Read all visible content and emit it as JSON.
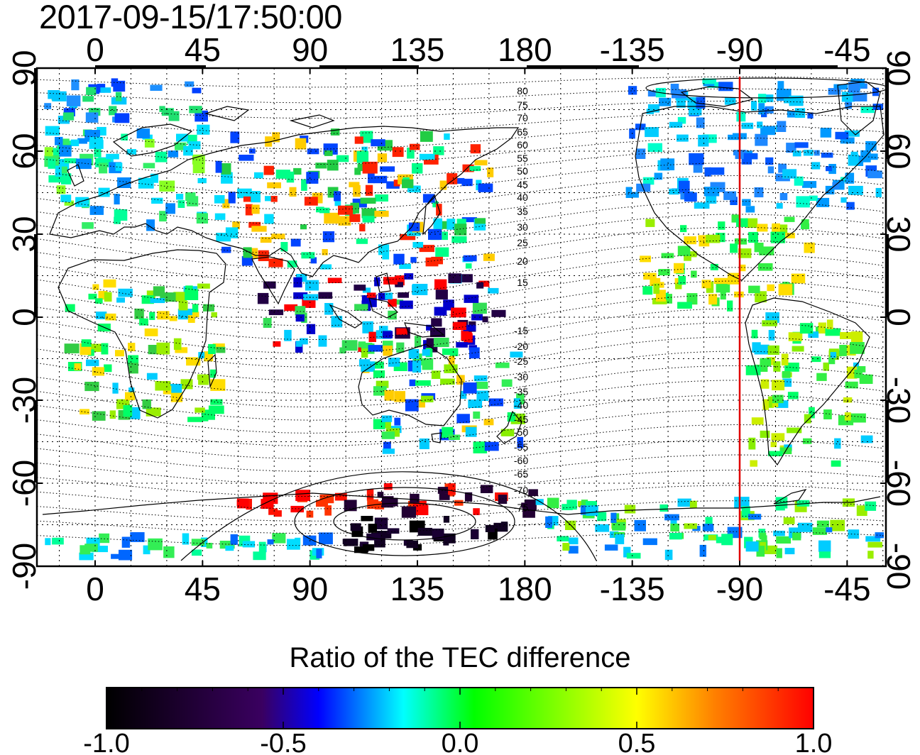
{
  "title": "2017-09-15/17:50:00",
  "map": {
    "lon_ticks": [
      "0",
      "45",
      "90",
      "135",
      "180",
      "-135",
      "-90",
      "-45"
    ],
    "lat_ticks": [
      "90",
      "60",
      "30",
      "0",
      "-30",
      "-60",
      "-90"
    ],
    "magnetic_lat_labels_north": [
      "80",
      "75",
      "70",
      "65",
      "60",
      "55",
      "50",
      "45",
      "40",
      "35",
      "30",
      "25",
      "20",
      "15"
    ],
    "magnetic_lat_labels_south": [
      "-15",
      "-20",
      "-25",
      "-30",
      "-35",
      "-40",
      "-45",
      "-50",
      "-55",
      "-60",
      "-65",
      "-70",
      "-75"
    ],
    "meridian_line_lon": -90,
    "meridian_line_color": "#e00000"
  },
  "colorbar": {
    "title": "Ratio of the TEC difference",
    "tick_labels": [
      "-1.0",
      "-0.5",
      "0.0",
      "0.5",
      "1.0"
    ],
    "range": [
      -1.0,
      1.0
    ],
    "colors": [
      "#000000",
      "#3a0060",
      "#0000ff",
      "#00ffff",
      "#00ff00",
      "#ffff00",
      "#ff8000",
      "#ff0000"
    ]
  }
}
